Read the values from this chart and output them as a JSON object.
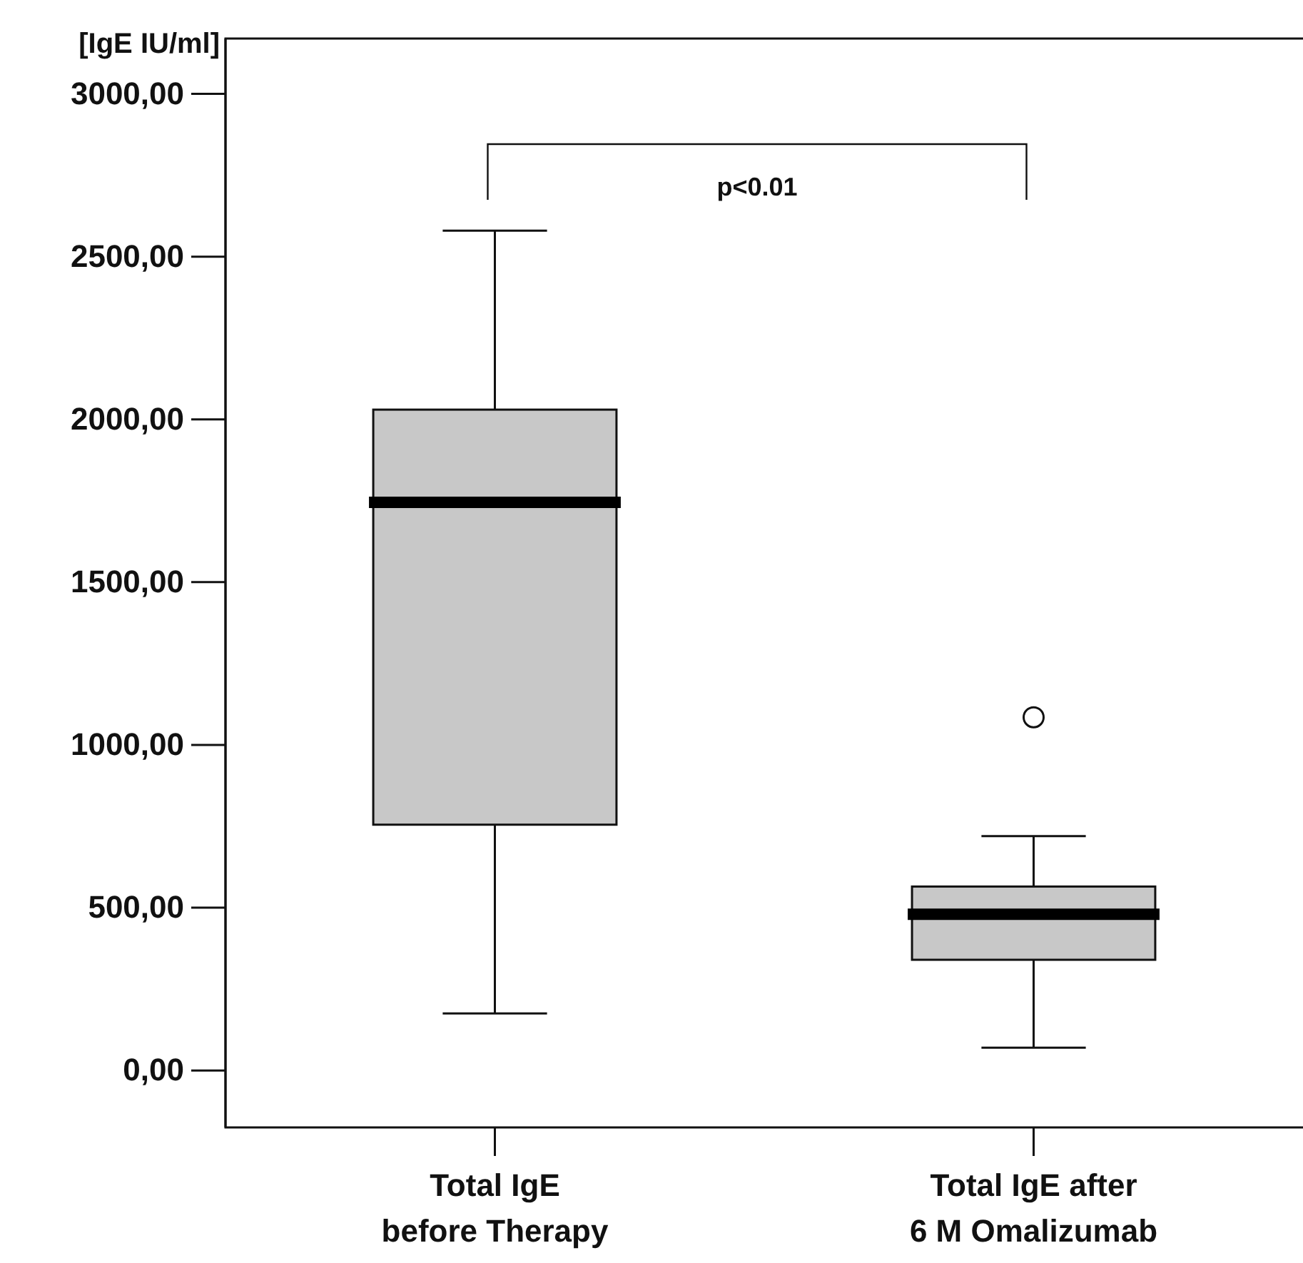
{
  "chart_data": {
    "type": "box",
    "ylabel": "[IgE IU/ml]",
    "categories": [
      "Total IgE\nbefore Therapy",
      "Total IgE after\n6 M Omalizumab"
    ],
    "boxes": [
      {
        "low": 175,
        "q1": 755,
        "median": 1745,
        "q3": 2030,
        "high": 2580
      },
      {
        "low": 70,
        "q1": 340,
        "median": 480,
        "q3": 565,
        "high": 720,
        "outliers": [
          1085
        ]
      }
    ],
    "color": "#c8c8c8",
    "ylim": [
      -175,
      3170
    ],
    "yticks": [
      {
        "value": 0,
        "label": "0,00"
      },
      {
        "value": 500,
        "label": "500,00"
      },
      {
        "value": 1000,
        "label": "1000,00"
      },
      {
        "value": 1500,
        "label": "1500,00"
      },
      {
        "value": 2000,
        "label": "2000,00"
      },
      {
        "value": 2500,
        "label": "2500,00"
      },
      {
        "value": 3000,
        "label": "3000,00"
      }
    ],
    "annotations": [
      "p<0.01"
    ],
    "grid": false
  }
}
